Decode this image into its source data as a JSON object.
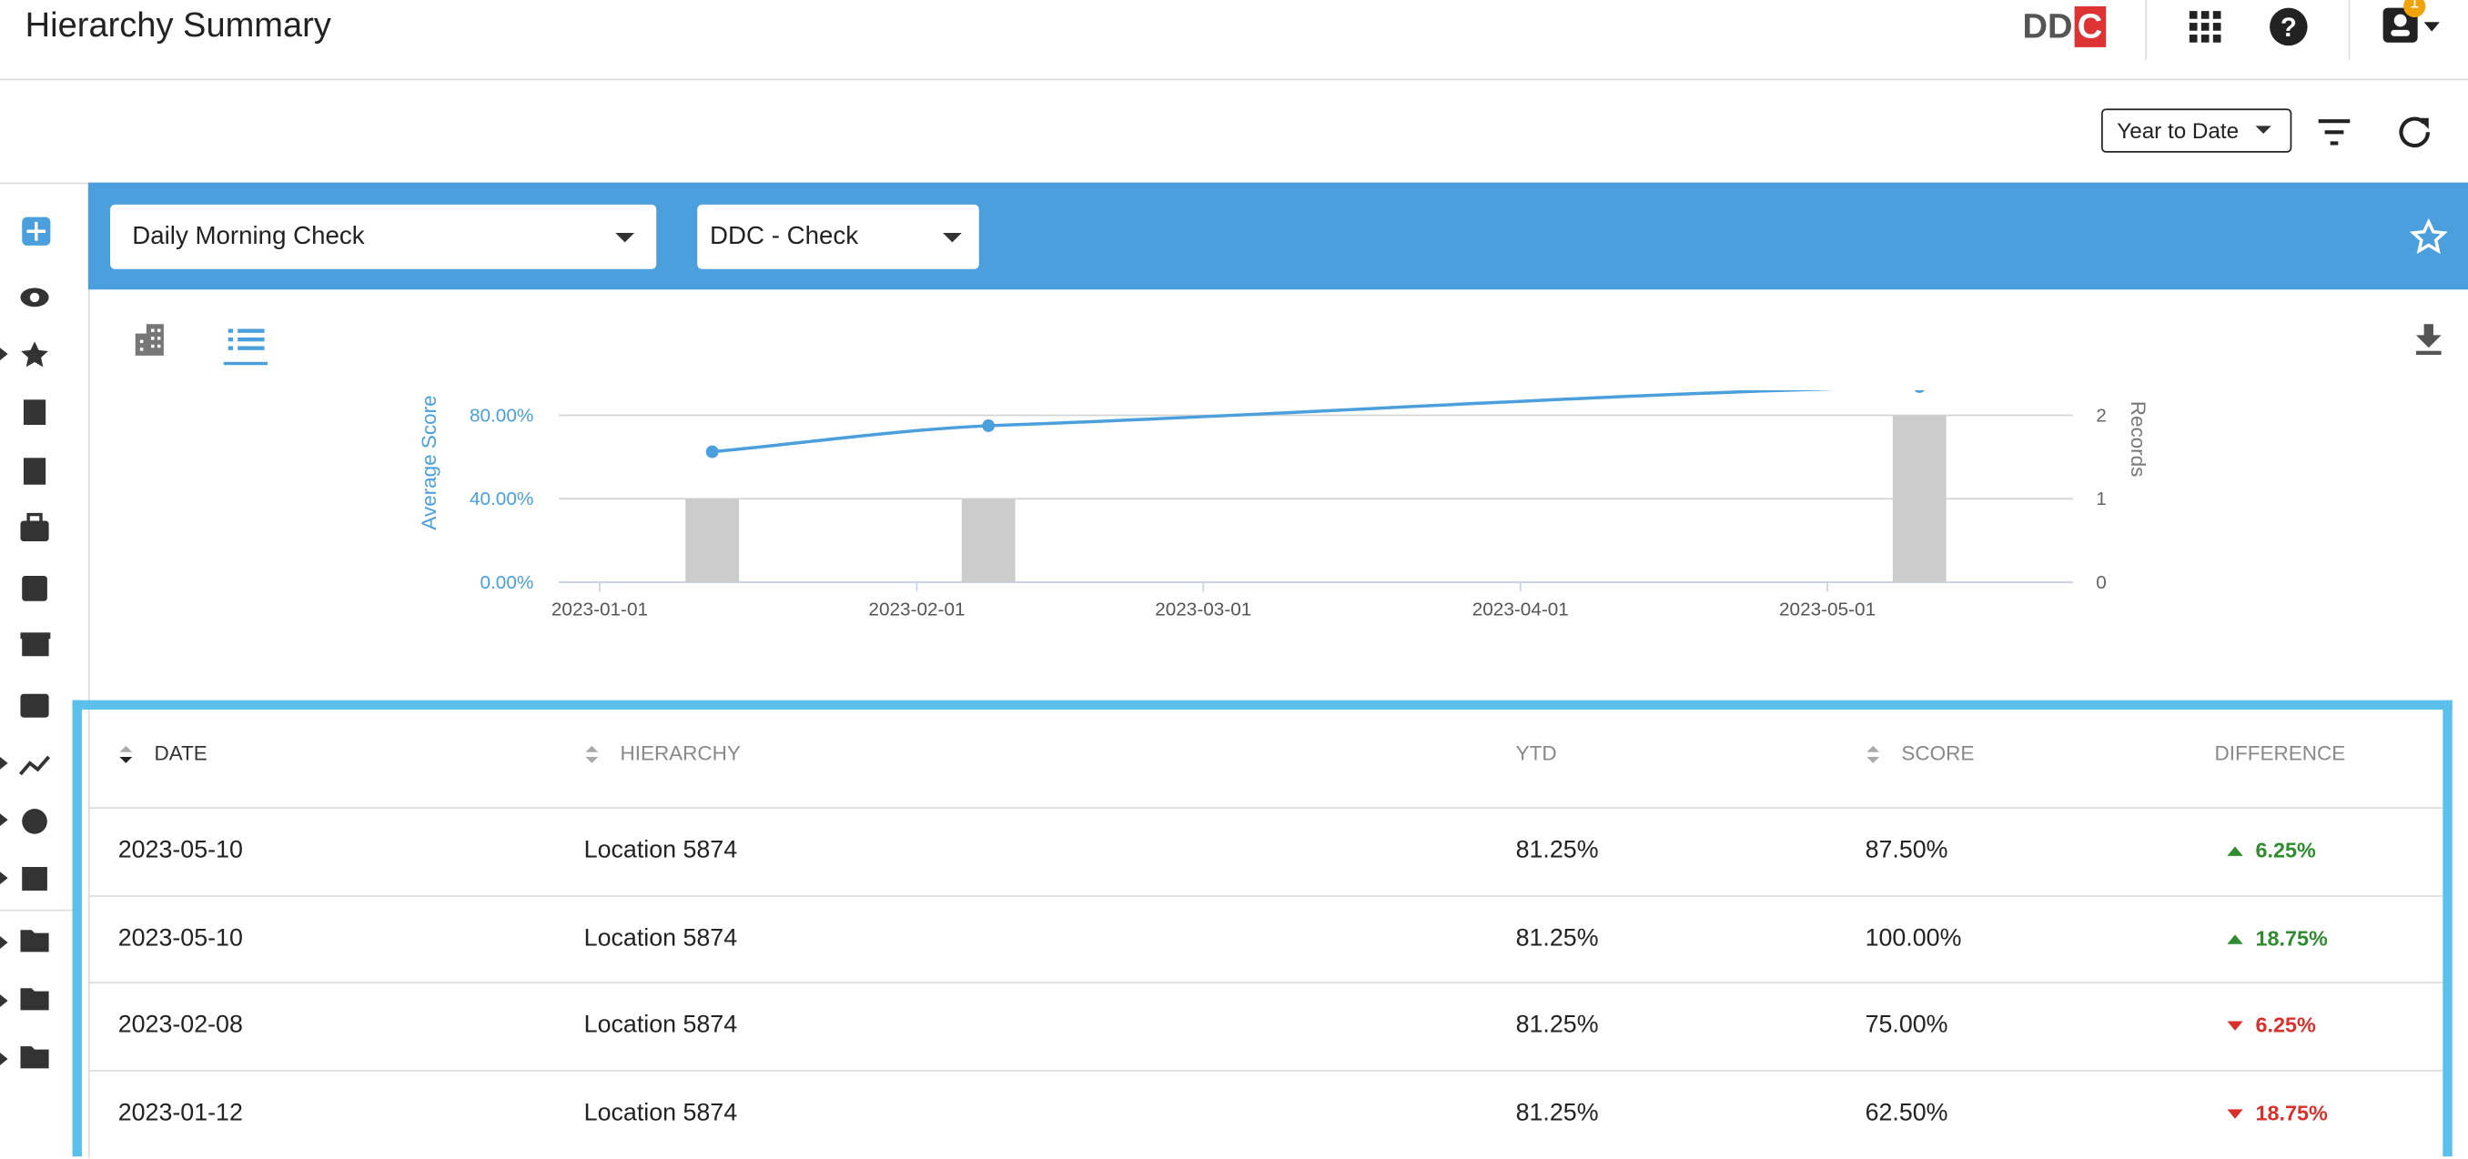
{
  "header": {
    "title": "Hierarchy Summary",
    "logo": [
      "DD",
      "C"
    ],
    "badge": "1"
  },
  "toolbar": {
    "period": "Year to Date"
  },
  "filters": {
    "check": "Daily Morning Check",
    "group": "DDC - Check"
  },
  "chart_data": {
    "type": "combo",
    "ylabel": "Average Score",
    "y2label": "Records",
    "x": [
      "2023-01-12",
      "2023-02-08",
      "2023-05-10"
    ],
    "series": [
      {
        "type": "line",
        "color": "#4a9fdc",
        "values": [
          62.5,
          75,
          93.75
        ]
      },
      {
        "type": "bar",
        "axis": "y2",
        "color": "#cccccc",
        "values": [
          1,
          1,
          2
        ]
      }
    ],
    "xlim": [
      "2022-12-28",
      "2023-05-25"
    ],
    "xticks": [
      "2023-01-01",
      "2023-02-01",
      "2023-03-01",
      "2023-04-01",
      "2023-05-01"
    ],
    "ylim": [
      0,
      92
    ],
    "yticks": [
      {
        "value": 0,
        "label": "0.00%"
      },
      {
        "value": 40,
        "label": "40.00%"
      },
      {
        "value": 80,
        "label": "80.00%"
      }
    ],
    "y2lim": [
      0,
      2.3
    ],
    "y2ticks": [
      0,
      1,
      2
    ],
    "grid": true
  },
  "table": {
    "columns": [
      "DATE",
      "HIERARCHY",
      "YTD",
      "SCORE",
      "DIFFERENCE"
    ],
    "rows": [
      [
        "2023-05-10",
        "Location 5874",
        "81.25%",
        "87.50%",
        "6.25%"
      ],
      [
        "2023-05-10",
        "Location 5874",
        "81.25%",
        "100.00%",
        "18.75%"
      ],
      [
        "2023-02-08",
        "Location 5874",
        "81.25%",
        "75.00%",
        "6.25%"
      ],
      [
        "2023-01-12",
        "Location 5874",
        "81.25%",
        "62.50%",
        "18.75%"
      ]
    ],
    "trend": [
      "up",
      "up",
      "down",
      "down"
    ]
  }
}
